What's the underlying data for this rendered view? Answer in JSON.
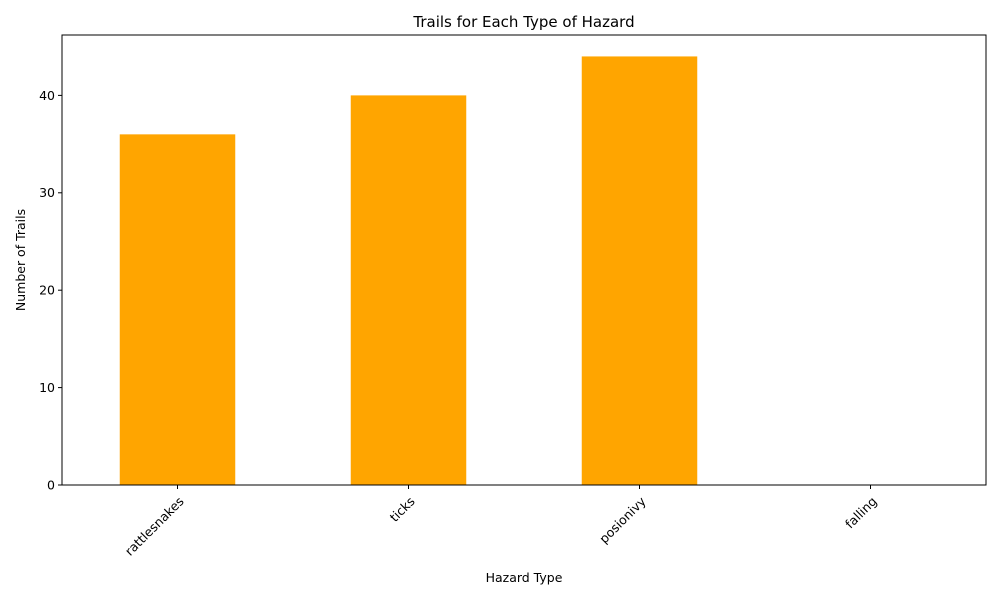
{
  "chart_data": {
    "type": "bar",
    "title": "Trails for Each Type of Hazard",
    "xlabel": "Hazard Type",
    "ylabel": "Number of Trails",
    "categories": [
      "rattlesnakes",
      "ticks",
      "posionivy",
      "falling"
    ],
    "values": [
      36,
      40,
      44,
      0
    ],
    "ylim": [
      0,
      46.2
    ],
    "yticks": [
      0,
      10,
      20,
      30,
      40
    ],
    "bar_color": "#ffa500",
    "grid": false,
    "x_tick_rotation_deg": 45
  }
}
